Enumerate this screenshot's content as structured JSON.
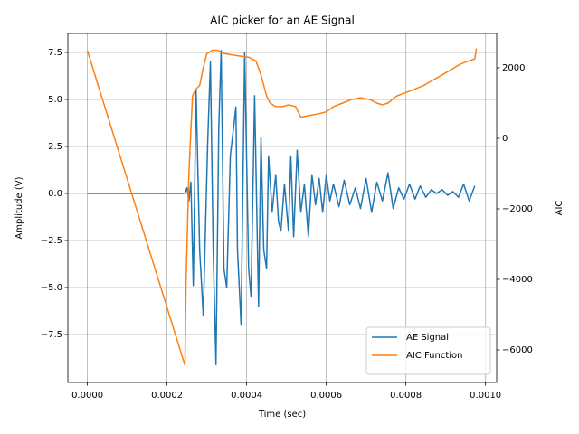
{
  "chart_data": {
    "type": "line",
    "title": "AIC picker for an AE Signal",
    "xlabel": "Time (sec)",
    "ylabel": "Amplitude (V)",
    "y2label": "AIC",
    "xlim": [
      -4.9e-05,
      0.001028
    ],
    "ylim": [
      -10.05,
      8.51
    ],
    "y2lim": [
      -6923,
      2974
    ],
    "xticks": [
      {
        "value": 0,
        "label": "0.0000"
      },
      {
        "value": 0.0002,
        "label": "0.0002"
      },
      {
        "value": 0.0004,
        "label": "0.0004"
      },
      {
        "value": 0.0006,
        "label": "0.0006"
      },
      {
        "value": 0.0008,
        "label": "0.0008"
      },
      {
        "value": 0.001,
        "label": "0.0010"
      }
    ],
    "yticks": [
      {
        "value": -7.5,
        "label": "−7.5"
      },
      {
        "value": -5,
        "label": "−5.0"
      },
      {
        "value": -2.5,
        "label": "−2.5"
      },
      {
        "value": 0,
        "label": "0.0"
      },
      {
        "value": 2.5,
        "label": "2.5"
      },
      {
        "value": 5,
        "label": "5.0"
      },
      {
        "value": 7.5,
        "label": "7.5"
      }
    ],
    "y2ticks": [
      {
        "value": -6000,
        "label": "−6000"
      },
      {
        "value": -4000,
        "label": "−4000"
      },
      {
        "value": -2000,
        "label": "−2000"
      },
      0,
      2000
    ],
    "grid": true,
    "legend": "lower right",
    "series": [
      {
        "name": "AE Signal",
        "color": "#1f77b4",
        "axis": "y",
        "x": [
          0,
          0.000245,
          0.00025,
          0.000255,
          0.00026,
          0.000266,
          0.000273,
          0.000282,
          0.000291,
          0.000302,
          0.000309,
          0.000316,
          0.000323,
          0.00033,
          0.000336,
          0.000343,
          0.00035,
          0.000359,
          0.000373,
          0.000377,
          0.000386,
          0.000395,
          0.000405,
          0.000411,
          0.00042,
          0.00043,
          0.000436,
          0.000443,
          0.00045,
          0.000455,
          0.000464,
          0.000473,
          0.00048,
          0.000486,
          0.000495,
          0.000505,
          0.000511,
          0.000518,
          0.000527,
          0.000536,
          0.000545,
          0.000555,
          0.000564,
          0.000573,
          0.000582,
          0.000591,
          0.0006,
          0.000609,
          0.000618,
          0.000632,
          0.000645,
          0.000659,
          0.000673,
          0.000686,
          0.0007,
          0.000714,
          0.000727,
          0.000741,
          0.000755,
          0.000768,
          0.000782,
          0.000795,
          0.000809,
          0.000823,
          0.000836,
          0.00085,
          0.000864,
          0.000877,
          0.000891,
          0.000905,
          0.000918,
          0.000932,
          0.000945,
          0.000959,
          0.000973
        ],
        "values": [
          0,
          0,
          0.3,
          -0.4,
          0.6,
          -4.9,
          5.5,
          -3,
          -6.5,
          2.6,
          7,
          -3,
          -9.1,
          3.5,
          7.6,
          -4,
          -5,
          2,
          4.6,
          -3,
          -7,
          7.5,
          -4,
          -5.5,
          5.2,
          -6,
          3,
          -3,
          -4,
          2,
          -1,
          1,
          -1.5,
          -2,
          0.5,
          -2,
          2,
          -2.3,
          2.3,
          -1,
          0.5,
          -2.3,
          1,
          -0.6,
          0.8,
          -1,
          1,
          -0.4,
          0.5,
          -0.7,
          0.7,
          -0.6,
          0.3,
          -0.8,
          0.8,
          -1,
          0.6,
          -0.4,
          1.1,
          -0.8,
          0.3,
          -0.3,
          0.5,
          -0.3,
          0.4,
          -0.2,
          0.2,
          0,
          0.2,
          -0.1,
          0.1,
          -0.2,
          0.5,
          -0.4,
          0.4
        ]
      },
      {
        "name": "AIC Function",
        "color": "#ff7f0e",
        "axis": "y2",
        "x": [
          0,
          0.000245,
          0.000248,
          0.000255,
          0.000259,
          0.000264,
          0.000268,
          0.000273,
          0.000282,
          0.000291,
          0.0003,
          0.000314,
          0.000327,
          0.000345,
          0.000373,
          0.000405,
          0.000423,
          0.000436,
          0.00045,
          0.000459,
          0.000473,
          0.000491,
          0.000505,
          0.000523,
          0.000536,
          0.000559,
          0.000582,
          0.0006,
          0.000618,
          0.000641,
          0.000664,
          0.000686,
          0.000709,
          0.000727,
          0.000741,
          0.000755,
          0.000777,
          0.0008,
          0.000823,
          0.000845,
          0.000868,
          0.000891,
          0.000914,
          0.000936,
          0.000959,
          0.000973,
          0.000977
        ],
        "values": [
          2490,
          -6435,
          -4000,
          -1000,
          0,
          1200,
          1300,
          1400,
          1500,
          2000,
          2400,
          2500,
          2500,
          2400,
          2350,
          2300,
          2200,
          1800,
          1200,
          1000,
          900,
          900,
          950,
          900,
          600,
          650,
          700,
          750,
          900,
          1000,
          1100,
          1150,
          1100,
          1000,
          950,
          1000,
          1200,
          1300,
          1400,
          1500,
          1650,
          1800,
          1950,
          2100,
          2200,
          2250,
          2550
        ]
      }
    ]
  }
}
